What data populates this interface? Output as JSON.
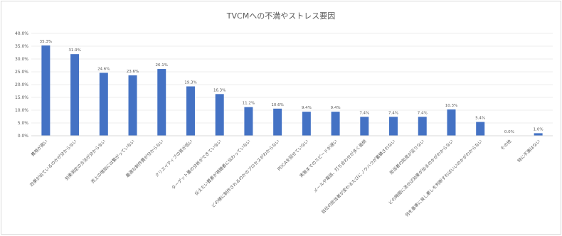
{
  "chart_data": {
    "type": "bar",
    "title": "TVCMへの不満やストレス要因",
    "xlabel": "",
    "ylabel": "",
    "ylim": [
      0,
      40
    ],
    "y_ticks": [
      "0.0%",
      "5.0%",
      "10.0%",
      "15.0%",
      "20.0%",
      "25.0%",
      "30.0%",
      "35.0%",
      "40.0%"
    ],
    "grid": true,
    "legend": "none",
    "bar_color": "#4472c4",
    "categories": [
      "費用が高い",
      "効果が出ているのかが分からない",
      "効果測定の方法が分からない",
      "売上の増加には繋がっていない",
      "最適な制作費が分からない",
      "クリエイティブの質が低い",
      "ターゲット層の分析ができていない",
      "伝えたい要素が視聴者に伝わっていない",
      "どの様に制作されるのかのプロセスがわからない",
      "PDCAを回せていない",
      "実施までのスピードが遅い",
      "メールや電話、打ち合わせが多く面倒",
      "自社の担当者が変わるたびにノウハウが蓄積されない",
      "担当者の知見が足りない",
      "どの時間に流せば効果が出るのかがわからない",
      "何を基準に良し悪しを判断すればいいのかがわからない",
      "その他",
      "特に不満はない"
    ],
    "values": [
      35.3,
      31.9,
      24.6,
      23.6,
      26.1,
      19.3,
      16.3,
      11.2,
      10.6,
      9.4,
      9.4,
      7.4,
      7.4,
      7.4,
      10.3,
      5.4,
      0.0,
      1.0
    ],
    "value_labels": [
      "35.3%",
      "31.9%",
      "24.6%",
      "23.6%",
      "26.1%",
      "19.3%",
      "16.3%",
      "11.2%",
      "10.6%",
      "9.4%",
      "9.4%",
      "7.4%",
      "7.4%",
      "7.4%",
      "10.3%",
      "5.4%",
      "0.0%",
      "1.0%"
    ]
  }
}
